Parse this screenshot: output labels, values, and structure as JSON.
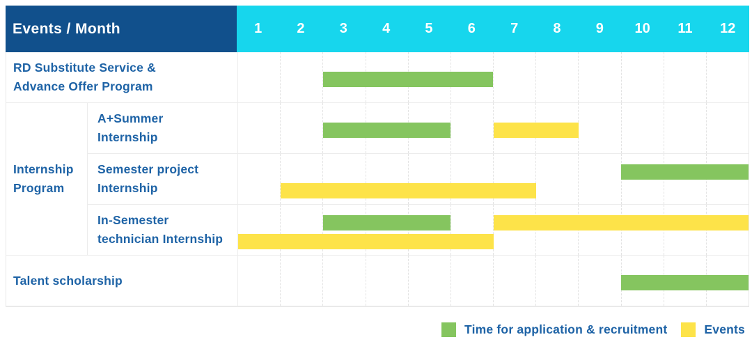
{
  "colors": {
    "header_bg": "#11508c",
    "months_bg": "#17d6ed",
    "header_text": "#ffffff",
    "label_text": "#1e63a6",
    "application_green": "#85c55f",
    "events_yellow": "#fde349",
    "grid_dash_line": "#e3e3e3",
    "row_line": "#ececec"
  },
  "header": {
    "title": "Events / Month",
    "months": [
      "1",
      "2",
      "3",
      "4",
      "5",
      "6",
      "7",
      "8",
      "9",
      "10",
      "11",
      "12"
    ]
  },
  "legend": {
    "items": [
      {
        "series": "application",
        "label": "Time for application & recruitment",
        "color": "#85c55f"
      },
      {
        "series": "events",
        "label": "Events",
        "color": "#fde349"
      }
    ]
  },
  "chart_data": {
    "type": "bar",
    "subtype": "gantt-month-timeline",
    "title": "Events / Month",
    "x_axis": {
      "unit": "month",
      "ticks": [
        1,
        2,
        3,
        4,
        5,
        6,
        7,
        8,
        9,
        10,
        11,
        12
      ],
      "range": [
        1,
        12
      ],
      "grid": "dashed-vertical"
    },
    "legend_position": "bottom-right",
    "series_defs": {
      "application": {
        "label": "Time for application & recruitment",
        "color": "#85c55f"
      },
      "events": {
        "label": "Events",
        "color": "#fde349"
      }
    },
    "groups": [
      {
        "label": "Internship Program",
        "label_display": "Internship\nProgram",
        "row_indexes": [
          1,
          2,
          3
        ]
      }
    ],
    "rows": [
      {
        "label": "RD Substitute Service & Advance Offer Program",
        "label_display": "RD Substitute Service &\nAdvance Offer Program",
        "group": null,
        "tracks": [
          [
            {
              "series": "application",
              "start_month": 3,
              "end_month": 6
            }
          ]
        ]
      },
      {
        "label": "A+Summer Internship",
        "label_display": "A+Summer\nInternship",
        "group": "Internship Program",
        "tracks": [
          [
            {
              "series": "application",
              "start_month": 3,
              "end_month": 5
            },
            {
              "series": "events",
              "start_month": 7,
              "end_month": 8
            }
          ]
        ]
      },
      {
        "label": "Semester project Internship",
        "label_display": "Semester project\nInternship",
        "group": "Internship Program",
        "tracks": [
          [
            {
              "series": "application",
              "start_month": 10,
              "end_month": 12
            }
          ],
          [
            {
              "series": "events",
              "start_month": 2,
              "end_month": 7
            }
          ]
        ]
      },
      {
        "label": "In-Semester technician Internship",
        "label_display": "In-Semester\ntechnician Internship",
        "group": "Internship Program",
        "tracks": [
          [
            {
              "series": "application",
              "start_month": 3,
              "end_month": 5
            },
            {
              "series": "events",
              "start_month": 7,
              "end_month": 12
            }
          ],
          [
            {
              "series": "events",
              "start_month": 1,
              "end_month": 6
            }
          ]
        ]
      },
      {
        "label": "Talent scholarship",
        "label_display": "Talent scholarship",
        "group": null,
        "tracks": [
          [
            {
              "series": "application",
              "start_month": 10,
              "end_month": 12
            }
          ]
        ]
      }
    ]
  }
}
